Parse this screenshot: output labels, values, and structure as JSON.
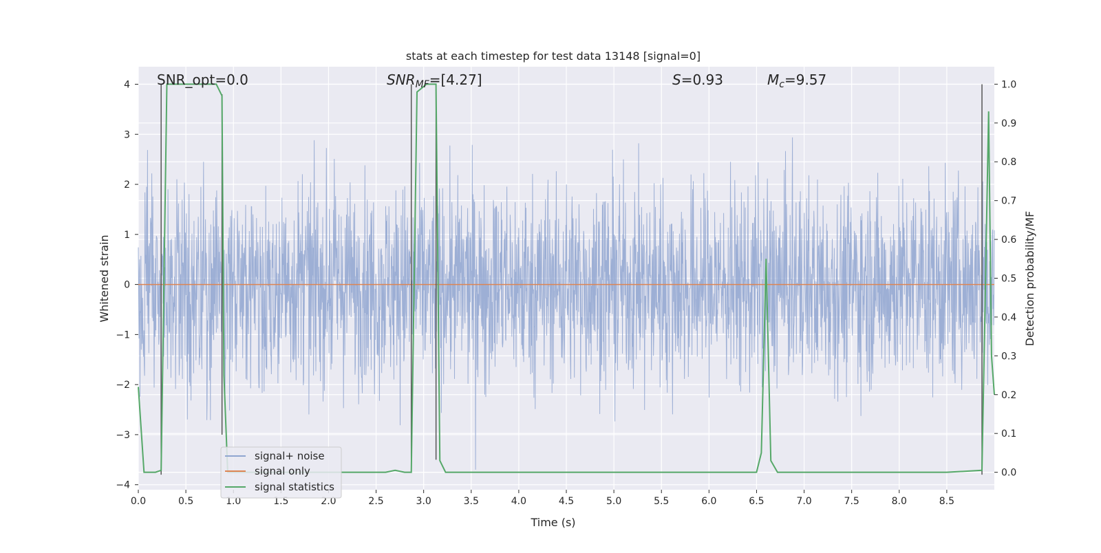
{
  "chart_data": {
    "type": "line",
    "title": "stats at each timestep for test data 13148 [signal=0]",
    "xlabel": "Time (s)",
    "ylabel_left": "Whitened strain",
    "ylabel_right": "Detection probability/MF",
    "xlim": [
      0.0,
      9.0
    ],
    "ylim_left": [
      -4.1,
      4.35
    ],
    "ylim_right": [
      -0.045,
      1.045
    ],
    "x_ticks": [
      "0.0",
      "0.5",
      "1.0",
      "1.5",
      "2.0",
      "2.5",
      "3.0",
      "3.5",
      "4.0",
      "4.5",
      "5.0",
      "5.5",
      "6.0",
      "6.5",
      "7.0",
      "7.5",
      "8.0",
      "8.5"
    ],
    "y_ticks_left": [
      "−4",
      "−3",
      "−2",
      "−1",
      "0",
      "1",
      "2",
      "3",
      "4"
    ],
    "y_ticks_right": [
      "0.0",
      "0.1",
      "0.2",
      "0.3",
      "0.4",
      "0.5",
      "0.6",
      "0.7",
      "0.8",
      "0.9",
      "1.0"
    ],
    "grid": true,
    "legend_position": "lower-left",
    "annotations": {
      "snr_opt": "SNR_opt=0.0",
      "snr_mf_italic": "SNR",
      "snr_mf_sub": "MF",
      "snr_mf_value": "=[4.27]",
      "s_italic": "S",
      "s_value": "=0.93",
      "mc_italic": "M",
      "mc_sub": "c",
      "mc_value": "=9.57"
    },
    "series": [
      {
        "name": "signal+ noise",
        "axis": "left",
        "color": "#8fa5d0",
        "style": "dense noise, amplitude approx ±1.5 typical, peaks to ±3.6"
      },
      {
        "name": "signal only",
        "axis": "left",
        "color": "#dd8452",
        "x": [
          0.0,
          9.0
        ],
        "y": [
          0,
          0
        ]
      },
      {
        "name": "signal statistics",
        "axis": "right",
        "color": "#55a868",
        "x": [
          0.0,
          0.06,
          0.18,
          0.24,
          0.3,
          0.36,
          0.6,
          0.82,
          0.88,
          0.9,
          0.94,
          1.0,
          1.5,
          2.0,
          2.6,
          2.7,
          2.8,
          2.87,
          2.93,
          3.03,
          3.13,
          3.17,
          3.23,
          3.5,
          4.0,
          4.5,
          5.0,
          5.5,
          6.0,
          6.5,
          6.55,
          6.6,
          6.65,
          6.72,
          7.0,
          7.5,
          8.0,
          8.5,
          8.87,
          8.9,
          8.94,
          8.97,
          9.0
        ],
        "y": [
          0.22,
          0.0,
          0.0,
          0.005,
          1.0,
          1.0,
          1.0,
          1.0,
          0.97,
          0.25,
          0.0,
          0.0,
          0.0,
          0.0,
          0.0,
          0.005,
          0.0,
          0.0,
          0.98,
          1.0,
          1.0,
          0.03,
          0.0,
          0.0,
          0.0,
          0.0,
          0.0,
          0.0,
          0.0,
          0.0,
          0.05,
          0.55,
          0.03,
          0.0,
          0.0,
          0.0,
          0.0,
          0.0,
          0.005,
          0.4,
          0.93,
          0.3,
          0.2
        ]
      }
    ],
    "detection_markers": [
      {
        "x": 0.24,
        "y_from": -3.8,
        "y_to": 4.0
      },
      {
        "x": 0.88,
        "y_from": -3.0,
        "y_to": 3.8
      },
      {
        "x": 2.87,
        "y_from": -3.5,
        "y_to": 4.0
      },
      {
        "x": 3.13,
        "y_from": -3.5,
        "y_to": 3.9
      },
      {
        "x": 8.87,
        "y_from": -3.8,
        "y_to": 4.0
      }
    ],
    "legend": [
      "signal+ noise",
      "signal only",
      "signal statistics"
    ]
  }
}
